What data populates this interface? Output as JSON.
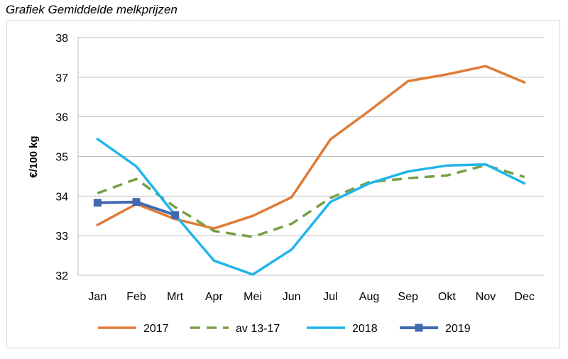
{
  "caption": "Grafiek Gemiddelde melkprijzen",
  "chart_data": {
    "type": "line",
    "title": "",
    "xlabel": "",
    "ylabel": "€/100 kg",
    "ylim": [
      32,
      38
    ],
    "yticks": [
      32,
      33,
      34,
      35,
      36,
      37,
      38
    ],
    "grid": true,
    "legend_position": "bottom",
    "categories": [
      "Jan",
      "Feb",
      "Mrt",
      "Apr",
      "Mei",
      "Jun",
      "Jul",
      "Aug",
      "Sep",
      "Okt",
      "Nov",
      "Dec"
    ],
    "series": [
      {
        "name": "2017",
        "color": "#e07b39",
        "dashed": false,
        "markers": false,
        "values": [
          33.27,
          33.8,
          33.42,
          33.18,
          33.5,
          33.97,
          35.43,
          36.15,
          36.9,
          37.07,
          37.28,
          36.87
        ]
      },
      {
        "name": "av 13-17",
        "color": "#77a044",
        "dashed": true,
        "markers": false,
        "values": [
          34.07,
          34.43,
          33.72,
          33.12,
          32.97,
          33.3,
          33.95,
          34.35,
          34.45,
          34.52,
          34.78,
          34.48
        ]
      },
      {
        "name": "2018",
        "color": "#21b5ea",
        "dashed": false,
        "markers": false,
        "values": [
          35.44,
          34.75,
          33.52,
          32.37,
          32.02,
          32.65,
          33.85,
          34.32,
          34.62,
          34.77,
          34.8,
          34.32
        ]
      },
      {
        "name": "2019",
        "color": "#4169b0",
        "dashed": false,
        "markers": true,
        "values": [
          33.83,
          33.85,
          33.52,
          null,
          null,
          null,
          null,
          null,
          null,
          null,
          null,
          null
        ]
      }
    ]
  }
}
